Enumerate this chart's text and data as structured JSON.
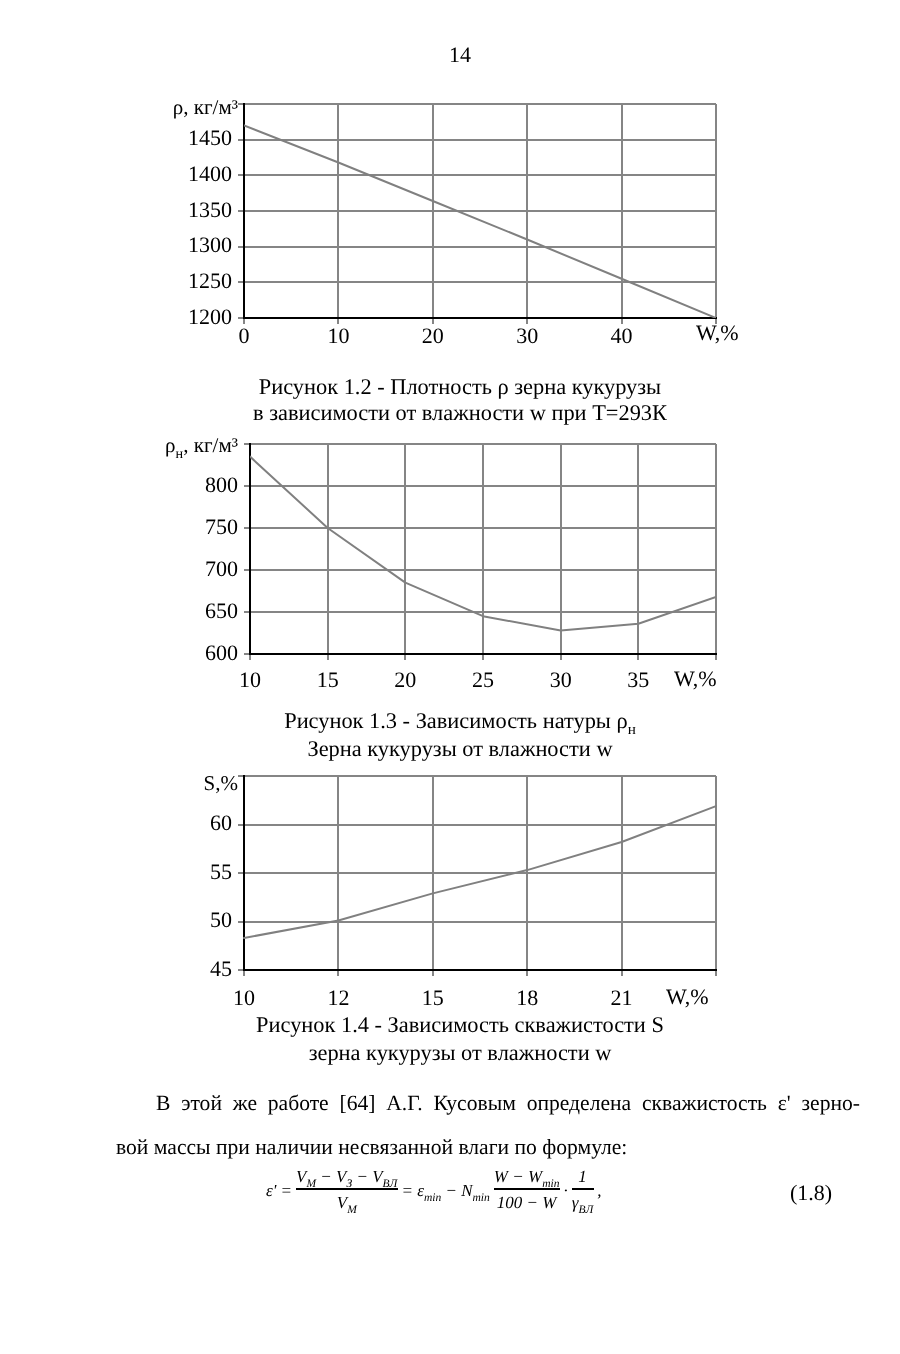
{
  "chart_data": [
    {
      "type": "line",
      "title": "Рисунок 1.2 - Плотность ρ зерна кукурузы\nв зависимости от влажности w при T=293К",
      "xlabel": "W,%",
      "ylabel": "ρ, кг/м³",
      "x": [
        0,
        10,
        20,
        30,
        40,
        50
      ],
      "series": [
        {
          "color": "#808080",
          "values": [
            1470,
            1418,
            1364,
            1310,
            1255,
            1200
          ]
        }
      ],
      "xlim": [
        0,
        50
      ],
      "ylim": [
        1200,
        1500
      ],
      "xticks": [
        0,
        10,
        20,
        30,
        40,
        {
          "value": 50,
          "label": null
        }
      ],
      "yticks": [
        1200,
        1250,
        1300,
        1350,
        1400,
        1450,
        {
          "value": 1500,
          "label": null
        }
      ],
      "grid": true,
      "marker": "none"
    },
    {
      "type": "line",
      "title": "Рисунок 1.3 - Зависимость натуры ρ$_{н}$\nЗерна кукурузы от влажности w",
      "xlabel": "W,%",
      "ylabel": "ρ$_{н}$, кг/м³",
      "x": [
        10,
        15,
        20,
        25,
        30,
        35,
        40
      ],
      "series": [
        {
          "color": "#808080",
          "values": [
            835,
            750,
            685,
            645,
            628,
            636,
            668
          ]
        }
      ],
      "xlim": [
        10,
        40
      ],
      "ylim": [
        600,
        850
      ],
      "xticks": [
        10,
        15,
        20,
        25,
        30,
        35,
        {
          "value": 40,
          "label": null
        }
      ],
      "yticks": [
        600,
        650,
        700,
        750,
        800,
        {
          "value": 850,
          "label": null
        }
      ],
      "grid": true,
      "marker": "none"
    },
    {
      "type": "line",
      "title": "Рисунок 1.4 - Зависимость скважистости S\nзерна кукурузы от влажности w",
      "xlabel": "W,%",
      "ylabel": "S,%",
      "categories": [
        "10",
        "12",
        "15",
        "18",
        "21",
        null
      ],
      "values": [
        48.3,
        50.1,
        52.9,
        55.3,
        58.2,
        61.9
      ],
      "color": "#808080",
      "ylim": [
        45,
        65
      ],
      "yticks": [
        45,
        50,
        55,
        60,
        {
          "value": 65,
          "label": null
        }
      ],
      "grid": true,
      "marker": "none"
    },
    {
      "type": "other",
      "annotations": [
        "14",
        "В этой же работе [64] А.Г. Кусовым определена скважистость ε' зерно-\nвой массы при наличии несвязанной влаги по формуле:",
        "ε' =",
        "V$_{М}$ − V$_{З}$ − V$_{ВЛ}$",
        "V$_{М}$",
        "= ε$_{min}$ − N$_{min}$",
        "W − W$_{min}$",
        "100 − W",
        "·",
        "1",
        "γ$_{ВЛ}$",
        ",",
        "(1.8)"
      ]
    }
  ]
}
